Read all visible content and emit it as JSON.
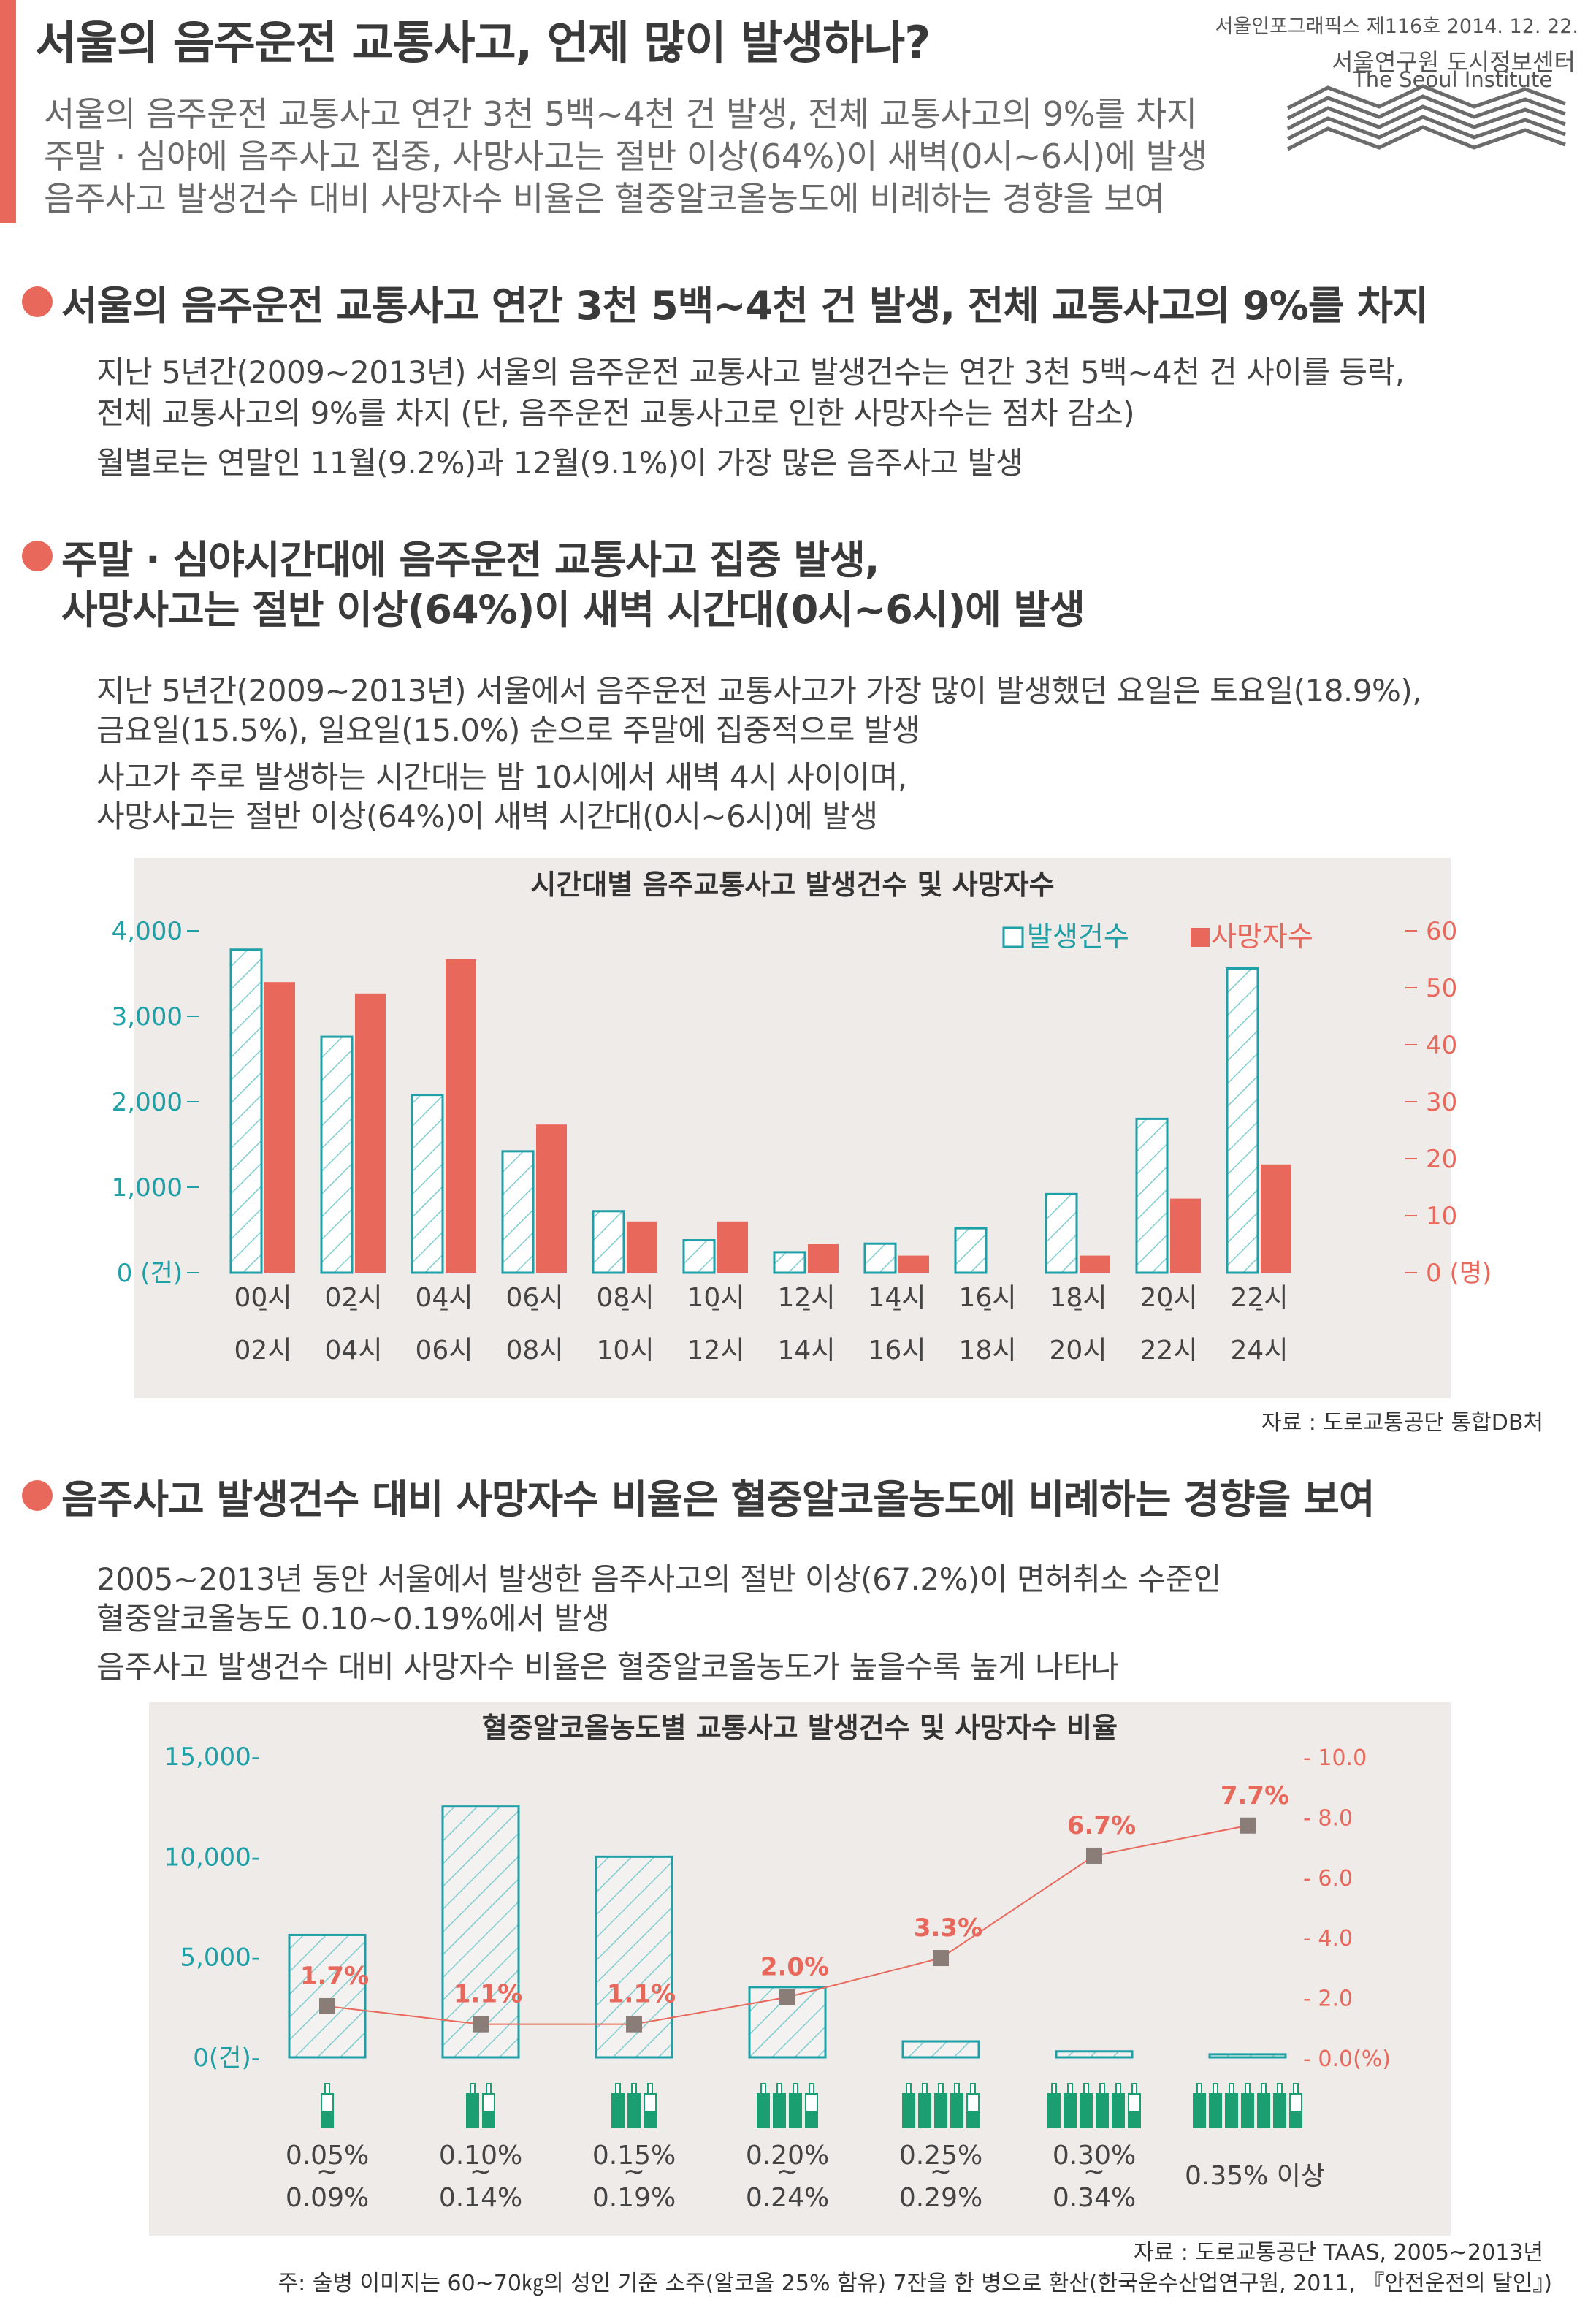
{
  "header": {
    "title": "서울의 음주운전 교통사고, 언제 많이 발생하나?",
    "issue": "서울인포그래픽스 제116호 2014. 12. 22.",
    "institute_ko": "서울연구원 도시정보센터",
    "institute_en": "The Seoul Institute",
    "subtitles": [
      "서울의 음주운전 교통사고 연간 3천 5백~4천 건 발생, 전체 교통사고의 9%를 차지",
      "주말 · 심야에 음주사고 집중, 사망사고는 절반 이상(64%)이 새벽(0시~6시)에 발생",
      "음주사고 발생건수 대비 사망자수 비율은 혈중알코올농도에 비례하는 경향을 보여"
    ]
  },
  "section1": {
    "title": "서울의 음주운전 교통사고 연간 3천 5백~4천 건 발생, 전체 교통사고의 9%를 차지",
    "lines": [
      "지난 5년간(2009~2013년) 서울의 음주운전 교통사고 발생건수는 연간 3천 5백~4천 건 사이를 등락,",
      "전체 교통사고의 9%를 차지 (단, 음주운전 교통사고로 인한 사망자수는 점차 감소)",
      "월별로는 연말인 11월(9.2%)과 12월(9.1%)이 가장 많은 음주사고 발생"
    ]
  },
  "section2": {
    "title_line1": "주말 · 심야시간대에 음주운전 교통사고 집중 발생,",
    "title_line2": "사망사고는 절반 이상(64%)이 새벽 시간대(0시~6시)에 발생",
    "lines": [
      "지난 5년간(2009~2013년) 서울에서 음주운전 교통사고가 가장 많이 발생했던 요일은 토요일(18.9%),",
      "금요일(15.5%), 일요일(15.0%) 순으로 주말에 집중적으로 발생",
      "사고가 주로 발생하는 시간대는 밤 10시에서 새벽 4시 사이이며,",
      "사망사고는 절반 이상(64%)이 새벽 시간대(0시~6시)에 발생"
    ],
    "source": "자료 : 도로교통공단 통합DB처"
  },
  "section3": {
    "title": "음주사고 발생건수 대비 사망자수 비율은 혈중알코올농도에 비례하는 경향을 보여",
    "lines": [
      "2005~2013년 동안 서울에서 발생한 음주사고의 절반 이상(67.2%)이 면허취소 수준인",
      "혈중알코올농도 0.10~0.19%에서 발생",
      "음주사고 발생건수 대비 사망자수 비율은 혈중알코올농도가 높을수록 높게 나타나"
    ],
    "source": "자료 : 도로교통공단 TAAS, 2005~2013년",
    "note": "주: 술병 이미지는 60~70㎏의 성인 기준 소주(알코올 25% 함유) 7잔을 한 병으로 환산(한국운수산업연구원, 2011, 『안전운전의 달인』)"
  },
  "colors": {
    "accent": "#e9685c",
    "teal": "#1fa0a7",
    "panel": "#efebe9",
    "bottle": "#1a9e72"
  },
  "chart_data": [
    {
      "type": "bar",
      "title": "시간대별 음주교통사고 발생건수 및 사망자수",
      "categories": [
        "00시-02시",
        "02시-04시",
        "04시-06시",
        "06시-08시",
        "08시-10시",
        "10시-12시",
        "12시-14시",
        "14시-16시",
        "16시-18시",
        "18시-20시",
        "20시-22시",
        "22시-24시"
      ],
      "category_lines": [
        [
          "00시",
          "-",
          "02시"
        ],
        [
          "02시",
          "-",
          "04시"
        ],
        [
          "04시",
          "-",
          "06시"
        ],
        [
          "06시",
          "-",
          "08시"
        ],
        [
          "08시",
          "-",
          "10시"
        ],
        [
          "10시",
          "-",
          "12시"
        ],
        [
          "12시",
          "-",
          "14시"
        ],
        [
          "14시",
          "-",
          "16시"
        ],
        [
          "16시",
          "-",
          "18시"
        ],
        [
          "18시",
          "-",
          "20시"
        ],
        [
          "20시",
          "-",
          "22시"
        ],
        [
          "22시",
          "-",
          "24시"
        ]
      ],
      "series": [
        {
          "name": "발생건수",
          "axis": "left",
          "values": [
            3780,
            2760,
            2080,
            1420,
            720,
            380,
            240,
            340,
            520,
            920,
            1800,
            3560
          ]
        },
        {
          "name": "사망자수",
          "axis": "right",
          "values": [
            51,
            49,
            55,
            26,
            9,
            9,
            5,
            3,
            0,
            3,
            13,
            19
          ]
        }
      ],
      "ylim_left": [
        0,
        4000
      ],
      "ylim_right": [
        0,
        60
      ],
      "yticks_left": [
        "0 (건)",
        "1,000",
        "2,000",
        "3,000",
        "4,000"
      ],
      "yticks_right": [
        "0 (명)",
        "10",
        "20",
        "30",
        "40",
        "50",
        "60"
      ],
      "legend_position": "top-right"
    },
    {
      "type": "bar",
      "title": "혈중알코올농도별 교통사고 발생건수 및 사망자수 비율",
      "categories": [
        "0.05%~0.09%",
        "0.10%~0.14%",
        "0.15%~0.19%",
        "0.20%~0.24%",
        "0.25%~0.29%",
        "0.30%~0.34%",
        "0.35% 이상"
      ],
      "category_lines": [
        [
          "0.05%",
          "~",
          "0.09%"
        ],
        [
          "0.10%",
          "~",
          "0.14%"
        ],
        [
          "0.15%",
          "~",
          "0.19%"
        ],
        [
          "0.20%",
          "~",
          "0.24%"
        ],
        [
          "0.25%",
          "~",
          "0.29%"
        ],
        [
          "0.30%",
          "~",
          "0.34%"
        ],
        [
          "0.35% 이상"
        ]
      ],
      "bottle_fill": [
        0.5,
        1.5,
        2.5,
        3.5,
        4.5,
        5.5,
        6.5
      ],
      "series": [
        {
          "name": "발생건수",
          "axis": "left",
          "values": [
            6100,
            12500,
            10000,
            3500,
            800,
            300,
            150
          ]
        },
        {
          "name": "사망자수 비율",
          "axis": "right",
          "type": "line",
          "values": [
            1.7,
            1.1,
            1.1,
            2.0,
            3.3,
            6.7,
            7.7
          ],
          "labels": [
            "1.7%",
            "1.1%",
            "1.1%",
            "2.0%",
            "3.3%",
            "6.7%",
            "7.7%"
          ]
        }
      ],
      "ylim_left": [
        0,
        15000
      ],
      "ylim_right": [
        0,
        10
      ],
      "yticks_left": [
        "0(건)",
        "5,000",
        "10,000",
        "15,000"
      ],
      "yticks_right": [
        "0.0(%)",
        "2.0",
        "4.0",
        "6.0",
        "8.0",
        "10.0"
      ]
    }
  ]
}
